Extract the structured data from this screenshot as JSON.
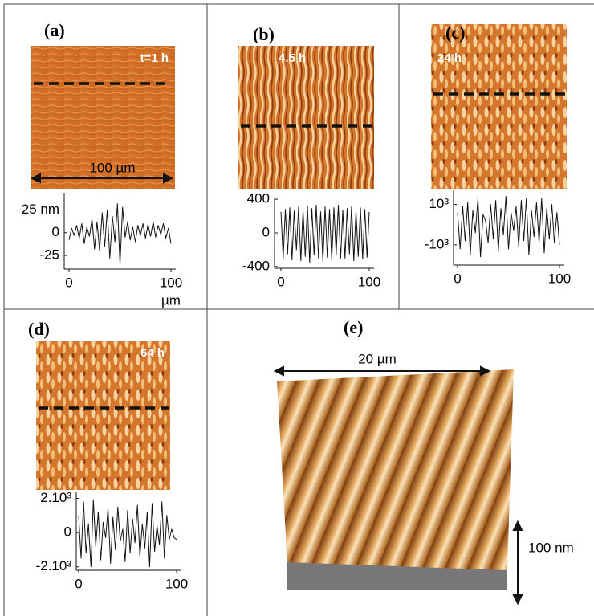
{
  "panels": [
    {
      "label": "(a)",
      "time": "t=1 h",
      "scale": "100 µm",
      "chart_data": {
        "type": "line",
        "x_unit": "µm",
        "xlim": [
          0,
          100
        ],
        "xticks": [
          0,
          100
        ],
        "ylim": [
          -40,
          44
        ],
        "yticks": [
          {
            "value": 25,
            "label": "25 nm"
          },
          0,
          -25
        ],
        "x": [
          0,
          2.5,
          5,
          7.5,
          10,
          12.5,
          15,
          17.5,
          20,
          22.5,
          25,
          27.5,
          30,
          32.5,
          35,
          37.5,
          40,
          42.5,
          45,
          47.5,
          50,
          52.5,
          55,
          57.5,
          60,
          62.5,
          65,
          67.5,
          70,
          72.5,
          75,
          77.5,
          80,
          82.5,
          85,
          87.5,
          90,
          92.5,
          95,
          97.5,
          100
        ],
        "values": [
          -8,
          5,
          -3,
          8,
          -6,
          10,
          -12,
          6,
          -4,
          15,
          -18,
          12,
          -20,
          22,
          -15,
          25,
          -28,
          18,
          -10,
          32,
          -35,
          28,
          -5,
          12,
          -8,
          6,
          -10,
          8,
          -3,
          10,
          -6,
          9,
          -4,
          12,
          -5,
          8,
          -2,
          10,
          -6,
          5,
          -12
        ]
      }
    },
    {
      "label": "(b)",
      "time": "4.5 h",
      "chart_data": {
        "type": "line",
        "xlim": [
          0,
          100
        ],
        "xticks": [
          0,
          100
        ],
        "ylim": [
          -420,
          420
        ],
        "yticks": [
          400,
          0,
          -400
        ],
        "x": [
          0,
          2.5,
          5,
          7.5,
          10,
          12.5,
          15,
          17.5,
          20,
          22.5,
          25,
          27.5,
          30,
          32.5,
          35,
          37.5,
          40,
          42.5,
          45,
          47.5,
          50,
          52.5,
          55,
          57.5,
          60,
          62.5,
          65,
          67.5,
          70,
          72.5,
          75,
          77.5,
          80,
          82.5,
          85,
          87.5,
          90,
          92.5,
          95,
          97.5,
          100
        ],
        "values": [
          250,
          -300,
          280,
          -250,
          300,
          -320,
          260,
          -200,
          310,
          -330,
          270,
          -280,
          320,
          -350,
          290,
          -260,
          330,
          -300,
          250,
          -340,
          310,
          -290,
          280,
          -320,
          300,
          -260,
          330,
          -310,
          270,
          -300,
          290,
          -250,
          320,
          -330,
          260,
          -280,
          300,
          -310,
          280,
          -290,
          250
        ]
      }
    },
    {
      "label": "(c)",
      "time": "24 h",
      "chart_data": {
        "type": "line",
        "xlim": [
          0,
          100
        ],
        "xticks": [
          0,
          100
        ],
        "ylim": [
          -2000,
          1700
        ],
        "yticks": [
          {
            "value": 1000,
            "label": "10³"
          },
          {
            "value": -1000,
            "label": "-10³"
          }
        ],
        "x": [
          0,
          2.5,
          5,
          7.5,
          10,
          12.5,
          15,
          17.5,
          20,
          22.5,
          25,
          27.5,
          30,
          32.5,
          35,
          37.5,
          40,
          42.5,
          45,
          47.5,
          50,
          52.5,
          55,
          57.5,
          60,
          62.5,
          65,
          67.5,
          70,
          72.5,
          75,
          77.5,
          80,
          82.5,
          85,
          87.5,
          90,
          92.5,
          95,
          97.5,
          100
        ],
        "values": [
          600,
          -1200,
          900,
          -800,
          1100,
          -1500,
          700,
          -400,
          1300,
          -1600,
          500,
          200,
          -900,
          1000,
          -700,
          1200,
          -1300,
          800,
          -500,
          1400,
          -1200,
          600,
          -300,
          900,
          -1100,
          1200,
          -800,
          1300,
          -1500,
          700,
          -600,
          1100,
          -900,
          1300,
          -1400,
          800,
          -700,
          1000,
          -900,
          600,
          -1000
        ]
      }
    },
    {
      "label": "(d)",
      "time": "64 h",
      "chart_data": {
        "type": "line",
        "xlim": [
          0,
          100
        ],
        "xticks": [
          0,
          100
        ],
        "ylim": [
          -2200,
          2400
        ],
        "yticks": [
          {
            "value": 2000,
            "label": "2.10³"
          },
          0,
          {
            "value": -2000,
            "label": "-2.10³"
          }
        ],
        "x": [
          0,
          2.5,
          5,
          7.5,
          10,
          12.5,
          15,
          17.5,
          20,
          22.5,
          25,
          27.5,
          30,
          32.5,
          35,
          37.5,
          40,
          42.5,
          45,
          47.5,
          50,
          52.5,
          55,
          57.5,
          60,
          62.5,
          65,
          67.5,
          70,
          72.5,
          75,
          77.5,
          80,
          82.5,
          85,
          87.5,
          90,
          92.5,
          95,
          97.5,
          100
        ],
        "values": [
          1000,
          -1500,
          1800,
          -1200,
          500,
          -2000,
          1900,
          -800,
          1200,
          -1600,
          600,
          -300,
          1400,
          -1800,
          900,
          -1000,
          1500,
          -500,
          200,
          -1700,
          1300,
          -1200,
          800,
          -600,
          1600,
          -1400,
          500,
          -900,
          1200,
          -2000,
          1700,
          -1100,
          400,
          -700,
          1800,
          -1500,
          1000,
          -400,
          200,
          -300,
          -400
        ]
      }
    },
    {
      "label": "(e)",
      "width": "20 µm",
      "height": "100 nm"
    }
  ]
}
